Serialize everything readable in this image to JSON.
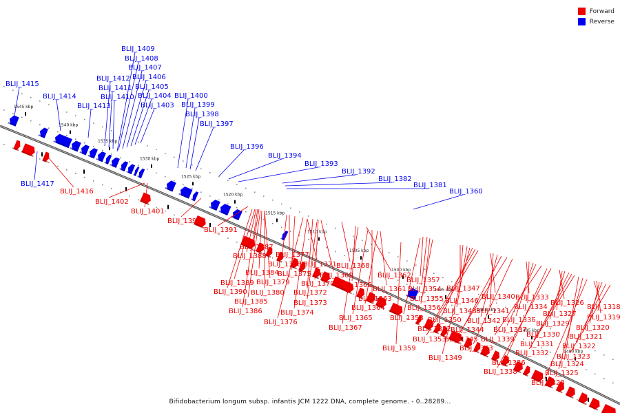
{
  "legend": {
    "forward_label": "Forward",
    "reverse_label": "Reverse",
    "forward_color": "#ee0000",
    "reverse_color": "#0000ee"
  },
  "caption": "Bifidobacterium longum subsp. infantis JCM 1222 DNA, complete genome. - 0..28289...",
  "scale_marks": [
    "1545 kbp",
    "1540 kbp",
    "1535 kbp",
    "1530 kbp",
    "1525 kbp",
    "1520 kbp",
    "1515 kbp",
    "1510 kbp",
    "1505 kbp",
    "1500 kbp",
    "1495 kbp",
    "1490 kbp",
    "1485 kbp",
    "1480 kbp"
  ],
  "genes_reverse": [
    "BLIJ_1409",
    "BLIJ_1408",
    "BLIJ_1407",
    "BLIJ_1406",
    "BLIJ_1405",
    "BLIJ_1404",
    "BLIJ_1403",
    "BLIJ_1412",
    "BLIJ_1411",
    "BLIJ_1410",
    "BLIJ_1415",
    "BLIJ_1414",
    "BLIJ_1413",
    "BLIJ_1400",
    "BLIJ_1399",
    "BLIJ_1398",
    "BLIJ_1397",
    "BLIJ_1396",
    "BLIJ_1394",
    "BLIJ_1393",
    "BLIJ_1392",
    "BLIJ_1382",
    "BLIJ_1381",
    "BLIJ_1360",
    "BLIJ_1417"
  ],
  "genes_forward": [
    "BLIJ_1416",
    "BLIJ_1402",
    "BLIJ_1401",
    "BLIJ_1395",
    "BLIJ_1391",
    "BLIJ_1387",
    "BLIJ_1388",
    "BLIJ_1377",
    "BLIJ_1378",
    "BLIJ_1371",
    "BLIJ_1368",
    "BLIJ_1384",
    "BLIJ_1375",
    "BLIJ_1369",
    "BLIJ_1389",
    "BLIJ_1379",
    "BLIJ_1370",
    "BLIJ_1366",
    "BLIJ_1362",
    "BLIJ_1390",
    "BLIJ_1380",
    "BLIJ_1372",
    "BLIJ_1361",
    "BLIJ_1385",
    "BLIJ_1373",
    "BLIJ_1363",
    "BLIJ_1364",
    "BLIJ_1386",
    "BLIJ_1374",
    "BLIJ_1365",
    "BLIJ_1376",
    "BLIJ_1367",
    "BLIJ_1357",
    "BLIJ_1354",
    "BLIJ_1355",
    "BLIJ_1356",
    "BLIJ_1358",
    "BLIJ_1359",
    "BLIJ_1347",
    "BLIJ_1346",
    "BLIJ_1348",
    "BLIJ_1350",
    "BLIJ_1352",
    "BLIJ_1353",
    "BLIJ_1349",
    "BLIJ_1340",
    "BLIJ_1341",
    "BLIJ_1342",
    "BLIJ_1344",
    "BLIJ_1345",
    "BLIJ_1343",
    "BLIJ_1333",
    "BLIJ_1334",
    "BLIJ_1335",
    "BLIJ_1337",
    "BLIJ_1339",
    "BLIJ_1336",
    "BLIJ_1338",
    "BLIJ_1326",
    "BLIJ_1327",
    "BLIJ_1329",
    "BLIJ_1330",
    "BLIJ_1331",
    "BLIJ_1332",
    "BLIJ_1324",
    "BLIJ_1325",
    "BLIJ_1328",
    "BLIJ_1318",
    "BLIJ_1319",
    "BLIJ_1320",
    "BLIJ_1321",
    "BLIJ_1322",
    "BLIJ_1323"
  ]
}
